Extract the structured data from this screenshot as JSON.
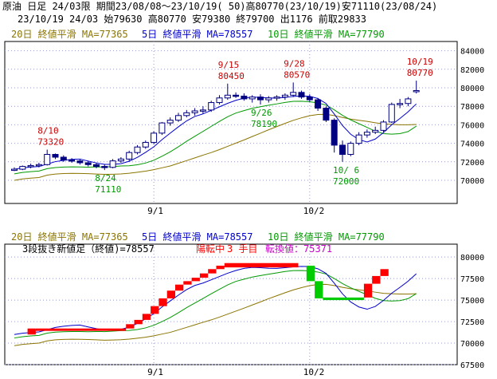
{
  "header": {
    "line1": "原油 日足 24/03限 期間23/08/08〜23/10/19( 50)高80770(23/10/19)安71110(23/08/24)",
    "line2": "23/10/19 24/03 始79630 高80770 安79380 終79700 出1176 前取29833"
  },
  "upper": {
    "legend": [
      {
        "text": "20日 終値平滑 MA=77365",
        "color": "#8b7500"
      },
      {
        "text": "5日 終値平滑 MA=78557",
        "color": "#0000cc"
      },
      {
        "text": "10日 終値平滑 MA=77790",
        "color": "#009900"
      }
    ]
  },
  "lower": {
    "legend": [
      {
        "text": "20日 終値平滑 MA=77365",
        "color": "#8b7500"
      },
      {
        "text": "5日 終値平滑 MA=78557",
        "color": "#0000cc"
      },
      {
        "text": "10日 終値平滑 MA=77790",
        "color": "#009900"
      }
    ],
    "info_a": "3段抜き新値足（終値)=78557",
    "info_b": "陽転中",
    "info_c": "3 手目",
    "info_d": "転換値：75371"
  },
  "chart_data": [
    {
      "type": "candlestick",
      "ylim": [
        67500,
        85000
      ],
      "yticks": [
        70000,
        72000,
        74000,
        76000,
        78000,
        80000,
        82000,
        84000
      ],
      "xticks": [
        {
          "label": "9/1",
          "index": 17
        },
        {
          "label": "10/2",
          "index": 36
        }
      ],
      "candles": [
        [
          71200,
          71400,
          71000,
          71200
        ],
        [
          71200,
          71600,
          71100,
          71500
        ],
        [
          71500,
          71800,
          71300,
          71600
        ],
        [
          71600,
          71900,
          71400,
          71700
        ],
        [
          71700,
          73320,
          71600,
          72800
        ],
        [
          72800,
          72900,
          72300,
          72500
        ],
        [
          72500,
          72700,
          72000,
          72200
        ],
        [
          72200,
          72400,
          71900,
          72100
        ],
        [
          72100,
          72300,
          71700,
          71900
        ],
        [
          71900,
          72100,
          71500,
          71700
        ],
        [
          71700,
          71900,
          71300,
          71500
        ],
        [
          71500,
          71700,
          71110,
          71400
        ],
        [
          71400,
          72300,
          71300,
          72100
        ],
        [
          72100,
          72500,
          71900,
          72300
        ],
        [
          72300,
          73200,
          72100,
          73000
        ],
        [
          73000,
          73800,
          72800,
          73600
        ],
        [
          73600,
          74300,
          73400,
          74100
        ],
        [
          74100,
          75300,
          73900,
          75100
        ],
        [
          75100,
          76300,
          74900,
          76200
        ],
        [
          76200,
          76800,
          75900,
          76500
        ],
        [
          76500,
          77300,
          76300,
          77000
        ],
        [
          77000,
          77600,
          76800,
          77300
        ],
        [
          77300,
          77800,
          77000,
          77500
        ],
        [
          77500,
          78000,
          77200,
          77600
        ],
        [
          77600,
          78600,
          77400,
          78400
        ],
        [
          78400,
          79200,
          78200,
          78900
        ],
        [
          78900,
          80450,
          78700,
          79200
        ],
        [
          79200,
          79500,
          78900,
          79100
        ],
        [
          79100,
          79400,
          78600,
          78800
        ],
        [
          78800,
          79200,
          78400,
          79000
        ],
        [
          79000,
          79300,
          78190,
          78700
        ],
        [
          78700,
          79100,
          78400,
          78900
        ],
        [
          78900,
          79200,
          78600,
          79000
        ],
        [
          79000,
          79400,
          78700,
          79200
        ],
        [
          79200,
          80570,
          79000,
          79500
        ],
        [
          79500,
          79700,
          78800,
          79000
        ],
        [
          79000,
          79300,
          78500,
          78700
        ],
        [
          78700,
          78900,
          77500,
          77800
        ],
        [
          77800,
          78000,
          76300,
          76500
        ],
        [
          76500,
          76700,
          73000,
          73800
        ],
        [
          73800,
          74300,
          72000,
          72800
        ],
        [
          72800,
          74200,
          72600,
          74000
        ],
        [
          74000,
          75200,
          73800,
          74900
        ],
        [
          74900,
          75500,
          74600,
          75200
        ],
        [
          75200,
          75800,
          75000,
          75400
        ],
        [
          75400,
          76500,
          75200,
          76300
        ],
        [
          76300,
          78400,
          76200,
          78200
        ],
        [
          78200,
          78800,
          77800,
          78300
        ],
        [
          78300,
          79000,
          78000,
          78800
        ],
        [
          79630,
          80770,
          79380,
          79700
        ]
      ],
      "annotations": [
        {
          "text": "8/10",
          "value": 73320,
          "index": 4,
          "pos": "above",
          "color": "#cc0000"
        },
        {
          "text": "73320",
          "value": 73320,
          "index": 4,
          "pos": "above2",
          "color": "#cc0000"
        },
        {
          "text": "8/24",
          "value": 71110,
          "index": 11,
          "pos": "below",
          "color": "#009900"
        },
        {
          "text": "71110",
          "value": 71110,
          "index": 11,
          "pos": "below2",
          "color": "#009900"
        },
        {
          "text": "9/15",
          "value": 80450,
          "index": 26,
          "pos": "above",
          "color": "#cc0000"
        },
        {
          "text": "80450",
          "value": 80450,
          "index": 26,
          "pos": "above2",
          "color": "#cc0000"
        },
        {
          "text": "9/26",
          "value": 78190,
          "index": 30,
          "pos": "below",
          "color": "#009900"
        },
        {
          "text": "78190",
          "value": 78190,
          "index": 30,
          "pos": "below2",
          "color": "#009900"
        },
        {
          "text": "9/28",
          "value": 80570,
          "index": 34,
          "pos": "above",
          "color": "#cc0000"
        },
        {
          "text": "80570",
          "value": 80570,
          "index": 34,
          "pos": "above2",
          "color": "#cc0000"
        },
        {
          "text": "10/ 6",
          "value": 72000,
          "index": 40,
          "pos": "below",
          "color": "#009900"
        },
        {
          "text": "72000",
          "value": 72000,
          "index": 40,
          "pos": "below2",
          "color": "#009900"
        },
        {
          "text": "10/19",
          "value": 80770,
          "index": 49,
          "pos": "above",
          "color": "#cc0000"
        },
        {
          "text": "80770",
          "value": 80770,
          "index": 49,
          "pos": "above2",
          "color": "#cc0000"
        }
      ],
      "ma5_color": "#0000cc",
      "ma10_color": "#009900",
      "ma20_color": "#8b7500"
    },
    {
      "type": "bar",
      "ylim": [
        67500,
        81500
      ],
      "yticks": [
        67500,
        70000,
        72500,
        75000,
        77500,
        80000
      ],
      "xticks": [
        {
          "label": "9/1",
          "index": 17
        },
        {
          "label": "10/2",
          "index": 36
        }
      ],
      "bricks": [
        {
          "x0": 2,
          "x1": 3,
          "lo": 71000,
          "hi": 71700,
          "color": "#ff0000"
        },
        {
          "x0": 3,
          "x1": 14,
          "lo": 71500,
          "hi": 71700,
          "color": "#ff0000"
        },
        {
          "x0": 14,
          "x1": 15,
          "lo": 71700,
          "hi": 72200,
          "color": "#ff0000"
        },
        {
          "x0": 15,
          "x1": 16,
          "lo": 72200,
          "hi": 72700,
          "color": "#ff0000"
        },
        {
          "x0": 16,
          "x1": 17,
          "lo": 72700,
          "hi": 73400,
          "color": "#ff0000"
        },
        {
          "x0": 17,
          "x1": 18,
          "lo": 73400,
          "hi": 74300,
          "color": "#ff0000"
        },
        {
          "x0": 18,
          "x1": 19,
          "lo": 74300,
          "hi": 75200,
          "color": "#ff0000"
        },
        {
          "x0": 19,
          "x1": 20,
          "lo": 75200,
          "hi": 76100,
          "color": "#ff0000"
        },
        {
          "x0": 20,
          "x1": 21,
          "lo": 76100,
          "hi": 76800,
          "color": "#ff0000"
        },
        {
          "x0": 21,
          "x1": 22,
          "lo": 76800,
          "hi": 77200,
          "color": "#ff0000"
        },
        {
          "x0": 22,
          "x1": 23,
          "lo": 77200,
          "hi": 77600,
          "color": "#ff0000"
        },
        {
          "x0": 23,
          "x1": 24,
          "lo": 77600,
          "hi": 78100,
          "color": "#ff0000"
        },
        {
          "x0": 24,
          "x1": 25,
          "lo": 78100,
          "hi": 78600,
          "color": "#ff0000"
        },
        {
          "x0": 25,
          "x1": 26,
          "lo": 78600,
          "hi": 79000,
          "color": "#ff0000"
        },
        {
          "x0": 26,
          "x1": 35,
          "lo": 78800,
          "hi": 79300,
          "color": "#ff0000"
        },
        {
          "x0": 36,
          "x1": 37,
          "lo": 77200,
          "hi": 79000,
          "color": "#00cc00"
        },
        {
          "x0": 37,
          "x1": 38,
          "lo": 75200,
          "hi": 77200,
          "color": "#00cc00"
        },
        {
          "x0": 38,
          "x1": 43,
          "lo": 75000,
          "hi": 75300,
          "color": "#00cc00"
        },
        {
          "x0": 43,
          "x1": 44,
          "lo": 75300,
          "hi": 76900,
          "color": "#ff0000"
        },
        {
          "x0": 44,
          "x1": 45,
          "lo": 76900,
          "hi": 77800,
          "color": "#ff0000"
        },
        {
          "x0": 45,
          "x1": 46,
          "lo": 77800,
          "hi": 78600,
          "color": "#ff0000"
        }
      ]
    }
  ]
}
